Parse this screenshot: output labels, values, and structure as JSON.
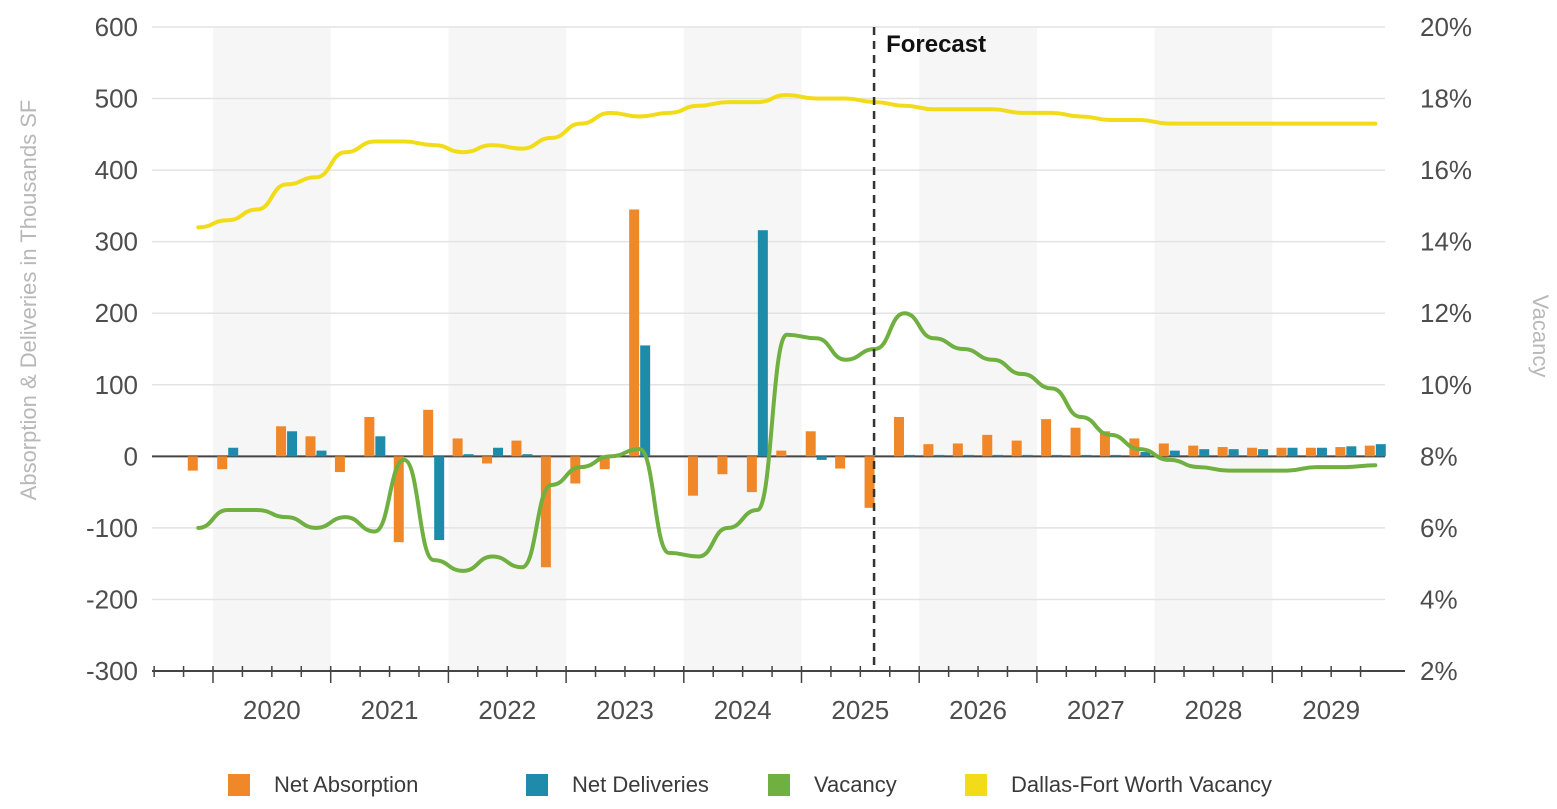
{
  "chart_data": {
    "type": "bar",
    "y_left": {
      "label": "Absorption & Deliveries in Thousands SF",
      "ticks": [
        600,
        500,
        400,
        300,
        200,
        100,
        0,
        -100,
        -200,
        -300
      ],
      "lim": [
        -300,
        600
      ]
    },
    "y_right": {
      "label": "Vacancy",
      "ticks": [
        "20%",
        "18%",
        "16%",
        "14%",
        "12%",
        "10%",
        "8%",
        "6%",
        "4%",
        "2%"
      ],
      "lim": [
        2,
        20
      ]
    },
    "x_categories": [
      "2020",
      "2021",
      "2022",
      "2023",
      "2024",
      "2025",
      "2026",
      "2027",
      "2028",
      "2029"
    ],
    "forecast_label": "Forecast",
    "forecast_start_quarter": "2025 Q3",
    "quarters": [
      "2019Q4",
      "2020Q1",
      "2020Q2",
      "2020Q3",
      "2020Q4",
      "2021Q1",
      "2021Q2",
      "2021Q3",
      "2021Q4",
      "2022Q1",
      "2022Q2",
      "2022Q3",
      "2022Q4",
      "2023Q1",
      "2023Q2",
      "2023Q3",
      "2023Q4",
      "2024Q1",
      "2024Q2",
      "2024Q3",
      "2024Q4",
      "2025Q1",
      "2025Q2",
      "2025Q3",
      "2025Q4",
      "2026Q1",
      "2026Q2",
      "2026Q3",
      "2026Q4",
      "2027Q1",
      "2027Q2",
      "2027Q3",
      "2027Q4",
      "2028Q1",
      "2028Q2",
      "2028Q3",
      "2028Q4",
      "2029Q1",
      "2029Q2",
      "2029Q3",
      "2029Q4"
    ],
    "series": [
      {
        "name": "Net Absorption",
        "type": "bar",
        "color": "#F0882A",
        "values": [
          -20,
          -18,
          0,
          42,
          28,
          -22,
          55,
          -120,
          65,
          25,
          -10,
          22,
          -155,
          -38,
          -18,
          345,
          0,
          -55,
          -25,
          -50,
          8,
          35,
          -17,
          -72,
          55,
          17,
          18,
          30,
          22,
          52,
          40,
          35,
          25,
          18,
          15,
          13,
          12,
          12,
          12,
          13,
          15
        ]
      },
      {
        "name": "Net Deliveries",
        "type": "bar",
        "color": "#1F8BAA",
        "values": [
          0,
          12,
          0,
          35,
          8,
          0,
          28,
          0,
          -117,
          3,
          12,
          3,
          0,
          0,
          0,
          155,
          0,
          0,
          0,
          316,
          0,
          -5,
          0,
          0,
          2,
          2,
          2,
          2,
          2,
          2,
          2,
          2,
          6,
          8,
          10,
          10,
          10,
          12,
          12,
          14,
          17
        ]
      },
      {
        "name": "Vacancy",
        "type": "line",
        "color": "#6FB041",
        "axis": "right",
        "values": [
          6.0,
          6.5,
          6.5,
          6.3,
          6.0,
          6.3,
          5.9,
          7.9,
          5.1,
          4.8,
          5.2,
          4.9,
          7.2,
          7.7,
          8.0,
          8.2,
          5.3,
          5.2,
          6.0,
          6.5,
          11.4,
          11.3,
          10.7,
          11.0,
          12.0,
          11.3,
          11.0,
          10.7,
          10.3,
          9.9,
          9.1,
          8.6,
          8.2,
          7.9,
          7.7,
          7.6,
          7.6,
          7.6,
          7.7,
          7.7,
          7.75
        ]
      },
      {
        "name": "Dallas-Fort Worth Vacancy",
        "type": "line",
        "color": "#F2DC1A",
        "axis": "right",
        "values": [
          14.4,
          14.6,
          14.9,
          15.6,
          15.8,
          16.5,
          16.8,
          16.8,
          16.7,
          16.5,
          16.7,
          16.6,
          16.9,
          17.3,
          17.6,
          17.5,
          17.6,
          17.8,
          17.9,
          17.9,
          18.1,
          18.0,
          18.0,
          17.9,
          17.8,
          17.7,
          17.7,
          17.7,
          17.6,
          17.6,
          17.5,
          17.4,
          17.4,
          17.3,
          17.3,
          17.3,
          17.3,
          17.3,
          17.3,
          17.3,
          17.3
        ]
      }
    ],
    "legend_position": "bottom",
    "grid": true
  }
}
